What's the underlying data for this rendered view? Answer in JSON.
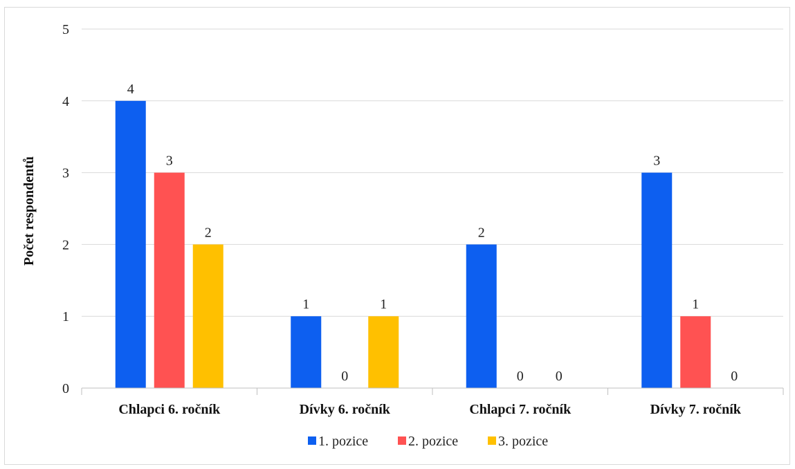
{
  "chart_data": {
    "type": "bar",
    "categories": [
      "Chlapci 6. ročník",
      "Dívky 6. ročník",
      "Chlapci 7. ročník",
      "Dívky 7. ročník"
    ],
    "series": [
      {
        "name": "1. pozice",
        "color": "#0d5ff0",
        "values": [
          4,
          1,
          2,
          3
        ]
      },
      {
        "name": "2. pozice",
        "color": "#ff5252",
        "values": [
          3,
          0,
          0,
          1
        ]
      },
      {
        "name": "3. pozice",
        "color": "#ffc000",
        "values": [
          2,
          1,
          0,
          0
        ]
      }
    ],
    "ylabel": "Počet respondentů",
    "xlabel": "",
    "ylim": [
      0,
      5
    ],
    "yticks": [
      0,
      1,
      2,
      3,
      4,
      5
    ],
    "grid": true,
    "legend_position": "bottom",
    "data_labels": true
  }
}
